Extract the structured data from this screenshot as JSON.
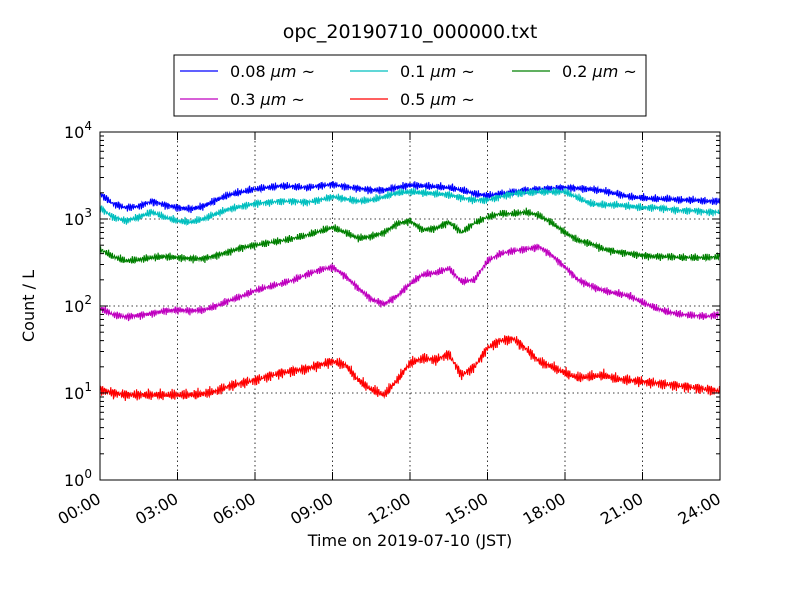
{
  "chart_data": {
    "type": "line",
    "title": "opc_20190710_000000.txt",
    "xlabel": "Time on 2019-07-10 (JST)",
    "ylabel": "Count / L",
    "y_scale": "log",
    "ylim": [
      1,
      10000
    ],
    "y_ticks": [
      {
        "value": 1,
        "base": "10",
        "exp": "0"
      },
      {
        "value": 10,
        "base": "10",
        "exp": "1"
      },
      {
        "value": 100,
        "base": "10",
        "exp": "2"
      },
      {
        "value": 1000,
        "base": "10",
        "exp": "3"
      },
      {
        "value": 10000,
        "base": "10",
        "exp": "4"
      }
    ],
    "xlim": [
      "2019-07-10 00:00",
      "2019-07-11 00:00"
    ],
    "x_ticks": [
      {
        "time": "2019-07-10 00:00",
        "label": "00:00"
      },
      {
        "time": "2019-07-10 03:00",
        "label": "03:00"
      },
      {
        "time": "2019-07-10 06:00",
        "label": "06:00"
      },
      {
        "time": "2019-07-10 09:00",
        "label": "09:00"
      },
      {
        "time": "2019-07-10 12:00",
        "label": "12:00"
      },
      {
        "time": "2019-07-10 15:00",
        "label": "15:00"
      },
      {
        "time": "2019-07-10 18:00",
        "label": "18:00"
      },
      {
        "time": "2019-07-10 21:00",
        "label": "21:00"
      },
      {
        "time": "2019-07-11 00:00",
        "label": "24:00"
      }
    ],
    "grid": true,
    "legend_position": "top-center",
    "x": [
      "00:00",
      "00:30",
      "01:00",
      "01:30",
      "02:00",
      "02:30",
      "03:00",
      "03:30",
      "04:00",
      "04:30",
      "05:00",
      "05:30",
      "06:00",
      "06:30",
      "07:00",
      "07:30",
      "08:00",
      "08:30",
      "09:00",
      "09:30",
      "10:00",
      "10:30",
      "11:00",
      "11:30",
      "12:00",
      "12:30",
      "13:00",
      "13:30",
      "14:00",
      "14:30",
      "15:00",
      "15:30",
      "16:00",
      "16:30",
      "17:00",
      "17:30",
      "18:00",
      "18:30",
      "19:00",
      "19:30",
      "20:00",
      "20:30",
      "21:00",
      "21:30",
      "22:00",
      "22:30",
      "23:00",
      "23:30",
      "24:00"
    ],
    "series": [
      {
        "name": "0.08 μm ~",
        "unit": "μm",
        "name_prefix": "0.08 ",
        "name_suffix": " ~",
        "color": "#0000ff",
        "values": [
          1950,
          1500,
          1350,
          1400,
          1600,
          1450,
          1350,
          1300,
          1400,
          1650,
          1900,
          2050,
          2200,
          2300,
          2400,
          2350,
          2300,
          2400,
          2500,
          2350,
          2250,
          2150,
          2150,
          2300,
          2450,
          2400,
          2350,
          2300,
          2150,
          1950,
          1850,
          1950,
          2050,
          2150,
          2200,
          2250,
          2300,
          2250,
          2200,
          2100,
          1950,
          1800,
          1750,
          1700,
          1700,
          1650,
          1650,
          1600,
          1600
        ]
      },
      {
        "name": "0.1 μm ~",
        "unit": "μm",
        "name_prefix": "0.1 ",
        "name_suffix": " ~",
        "color": "#00bfbf",
        "values": [
          1350,
          1050,
          950,
          1050,
          1200,
          1050,
          950,
          920,
          1000,
          1150,
          1300,
          1400,
          1500,
          1550,
          1600,
          1600,
          1550,
          1650,
          1800,
          1700,
          1600,
          1650,
          1800,
          2000,
          2050,
          2000,
          1950,
          1900,
          1750,
          1650,
          1650,
          1800,
          1950,
          2000,
          2050,
          2050,
          2050,
          1750,
          1500,
          1450,
          1450,
          1400,
          1350,
          1350,
          1300,
          1250,
          1250,
          1200,
          1200
        ]
      },
      {
        "name": "0.2 μm ~",
        "unit": "μm",
        "name_prefix": "0.2 ",
        "name_suffix": " ~",
        "color": "#008000",
        "values": [
          450,
          370,
          330,
          340,
          360,
          370,
          360,
          350,
          350,
          380,
          420,
          470,
          500,
          530,
          560,
          600,
          650,
          720,
          800,
          700,
          600,
          630,
          700,
          880,
          950,
          750,
          780,
          920,
          700,
          900,
          1050,
          1150,
          1150,
          1200,
          1100,
          900,
          700,
          570,
          520,
          450,
          420,
          400,
          380,
          370,
          370,
          360,
          360,
          360,
          370
        ]
      },
      {
        "name": "0.3 μm ~",
        "unit": "μm",
        "name_prefix": "0.3 ",
        "name_suffix": " ~",
        "color": "#bf00bf",
        "values": [
          95,
          80,
          75,
          78,
          82,
          88,
          90,
          88,
          90,
          100,
          115,
          130,
          150,
          165,
          180,
          200,
          230,
          260,
          280,
          220,
          160,
          120,
          105,
          130,
          180,
          230,
          240,
          270,
          190,
          200,
          330,
          400,
          430,
          450,
          480,
          380,
          280,
          200,
          170,
          150,
          140,
          130,
          110,
          95,
          85,
          80,
          78,
          76,
          80
        ]
      },
      {
        "name": "0.5 μm ~",
        "unit": "μm",
        "name_prefix": "0.5 ",
        "name_suffix": " ~",
        "color": "#ff0000",
        "values": [
          11,
          10,
          9.5,
          9.5,
          9.5,
          9.5,
          9.5,
          9.5,
          9.8,
          10.5,
          12,
          13,
          14,
          15.5,
          17,
          18,
          19,
          21,
          23,
          21,
          14,
          11,
          9.5,
          14,
          22,
          25,
          24,
          28,
          16,
          20,
          33,
          40,
          42,
          32,
          23,
          20,
          17,
          15,
          15.5,
          16,
          14.5,
          14,
          13.5,
          13,
          12.5,
          12,
          11.5,
          11,
          10.5
        ]
      }
    ]
  }
}
